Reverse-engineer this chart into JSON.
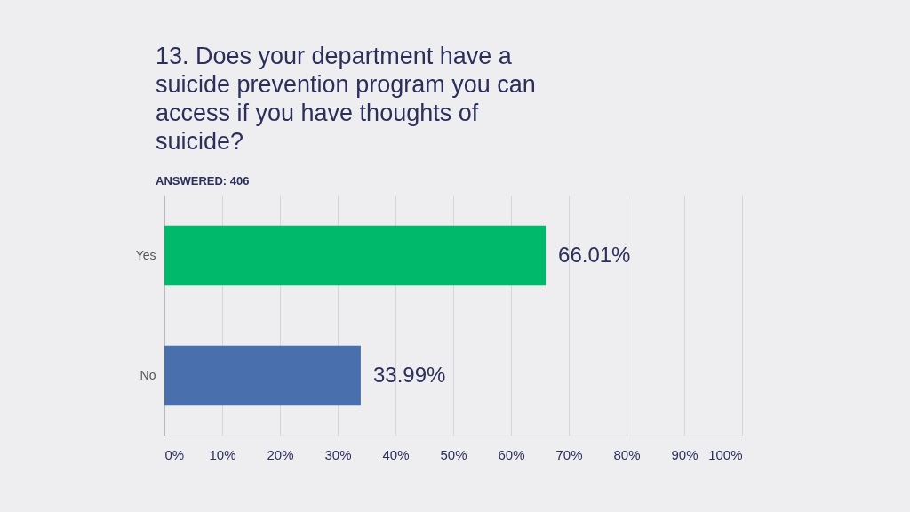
{
  "chart_data": {
    "type": "bar",
    "orientation": "horizontal",
    "title": "13. Does your department have a suicide prevention program you can access if you have thoughts of suicide?",
    "subtitle": "ANSWERED: 406",
    "categories": [
      "Yes",
      "No"
    ],
    "values": [
      66.01,
      33.99
    ],
    "colors": [
      "#00b96b",
      "#4a6fad"
    ],
    "value_labels": [
      "66.01%",
      "33.99%"
    ],
    "xlim": [
      0,
      100
    ],
    "xticks": [
      {
        "value": 0,
        "label": "0%"
      },
      {
        "value": 10,
        "label": "10%"
      },
      {
        "value": 20,
        "label": "20%"
      },
      {
        "value": 30,
        "label": "30%"
      },
      {
        "value": 40,
        "label": "40%"
      },
      {
        "value": 50,
        "label": "50%"
      },
      {
        "value": 60,
        "label": "60%"
      },
      {
        "value": 70,
        "label": "70%"
      },
      {
        "value": 80,
        "label": "80%"
      },
      {
        "value": 90,
        "label": "90%"
      },
      {
        "value": 100,
        "label": "100%"
      }
    ],
    "grid": "x"
  }
}
